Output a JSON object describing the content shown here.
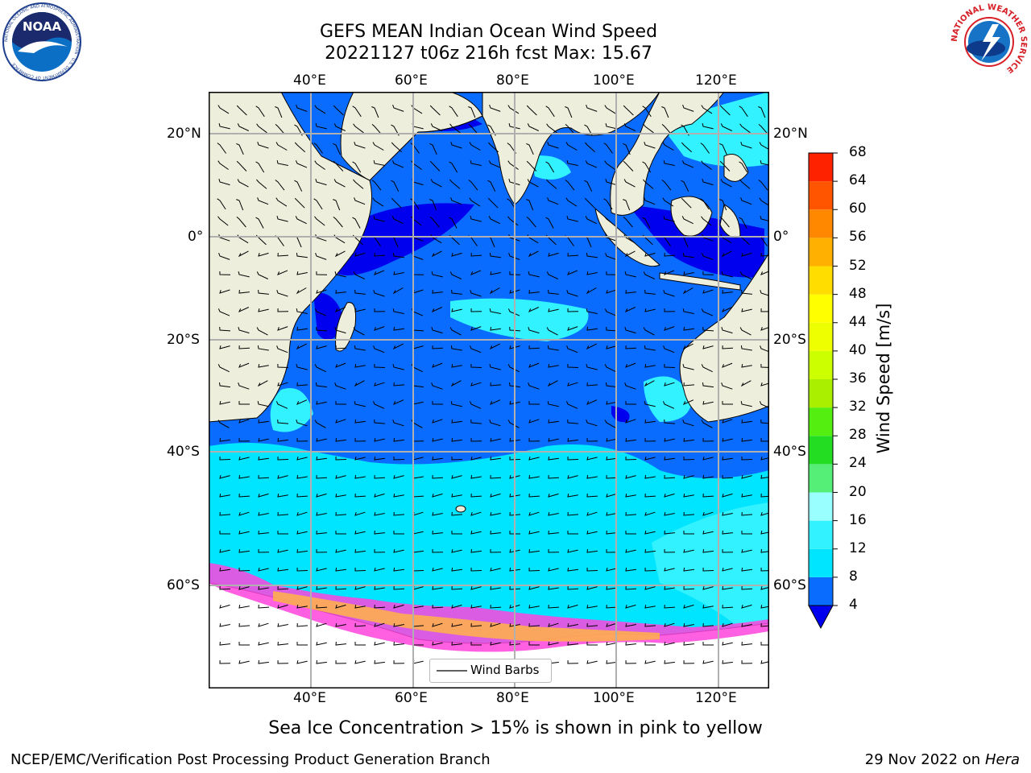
{
  "header": {
    "title_line1": "GEFS MEAN Indian Ocean Wind Speed",
    "title_line2": "20221127 t06z 216h fcst   Max: 15.67"
  },
  "logos": {
    "left_text": "NOAA",
    "left_ring_text": "NATIONAL OCEANIC AND ATMOSPHERIC ADMINISTRATION · U.S. DEPARTMENT OF COMMERCE",
    "right_ring_text": "NATIONAL WEATHER SERVICE"
  },
  "map": {
    "lon_ticks": [
      "40°E",
      "60°E",
      "80°E",
      "100°E",
      "120°E"
    ],
    "lat_ticks": [
      "20°N",
      "0°",
      "20°S",
      "40°S",
      "60°S"
    ],
    "legend_label": "Wind Barbs",
    "colors": {
      "land": "#eeeedc",
      "ice_edge": "#ff44dd",
      "ice_warm": "#ffb347",
      "grid": "#b0b0b0"
    }
  },
  "colorbar": {
    "label": "Wind Speed [m/s]",
    "ticks": [
      "4",
      "8",
      "12",
      "16",
      "20",
      "24",
      "28",
      "32",
      "36",
      "40",
      "44",
      "48",
      "52",
      "56",
      "60",
      "64",
      "68"
    ],
    "colors": [
      "#0a6cff",
      "#00e5ff",
      "#33f2ff",
      "#99ffff",
      "#55ee77",
      "#22dd22",
      "#55ee11",
      "#aaee00",
      "#ccff00",
      "#eeff00",
      "#ffff00",
      "#ffdd00",
      "#ffb000",
      "#ff8800",
      "#ff5500",
      "#ff2200"
    ],
    "under_color": "#0000ee"
  },
  "footer": {
    "note": "Sea Ice Concentration > 15% is shown in pink to yellow",
    "branch": "NCEP/EMC/Verification Post Processing Product Generation Branch",
    "date": "29 Nov 2022 on",
    "host": "Hera"
  }
}
